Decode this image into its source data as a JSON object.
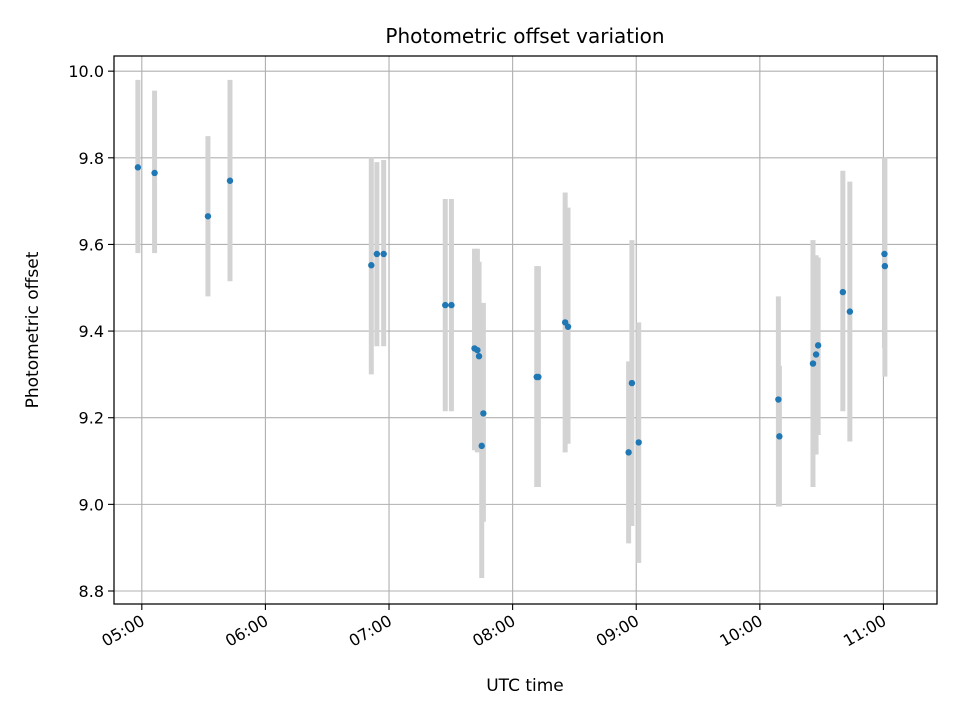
{
  "chart_data": {
    "type": "scatter",
    "title": "Photometric offset variation",
    "xlabel": "UTC time",
    "ylabel": "Photometric offset",
    "x_unit": "minutes_of_day_utc",
    "xlim": [
      286.5,
      686.0
    ],
    "ylim": [
      8.77,
      10.035
    ],
    "xticks": [
      {
        "value": 300,
        "label": "05:00"
      },
      {
        "value": 360,
        "label": "06:00"
      },
      {
        "value": 420,
        "label": "07:00"
      },
      {
        "value": 480,
        "label": "08:00"
      },
      {
        "value": 540,
        "label": "09:00"
      },
      {
        "value": 600,
        "label": "10:00"
      },
      {
        "value": 660,
        "label": "11:00"
      }
    ],
    "yticks": [
      {
        "value": 8.8,
        "label": "8.8"
      },
      {
        "value": 9.0,
        "label": "9.0"
      },
      {
        "value": 9.2,
        "label": "9.2"
      },
      {
        "value": 9.4,
        "label": "9.4"
      },
      {
        "value": 9.6,
        "label": "9.6"
      },
      {
        "value": 9.8,
        "label": "9.8"
      },
      {
        "value": 10.0,
        "label": "10.0"
      }
    ],
    "grid": true,
    "point_color": "#1f77b4",
    "errorbar_color": "#d3d3d3",
    "points": [
      {
        "x": 298.1,
        "y": 9.778,
        "low": 9.58,
        "high": 9.98
      },
      {
        "x": 306.2,
        "y": 9.765,
        "low": 9.58,
        "high": 9.955
      },
      {
        "x": 332.1,
        "y": 9.665,
        "low": 9.48,
        "high": 9.85
      },
      {
        "x": 342.8,
        "y": 9.747,
        "low": 9.515,
        "high": 9.98
      },
      {
        "x": 411.4,
        "y": 9.552,
        "low": 9.3,
        "high": 9.8
      },
      {
        "x": 414.1,
        "y": 9.578,
        "low": 9.365,
        "high": 9.79
      },
      {
        "x": 417.4,
        "y": 9.578,
        "low": 9.365,
        "high": 9.795
      },
      {
        "x": 447.3,
        "y": 9.46,
        "low": 9.215,
        "high": 9.705
      },
      {
        "x": 450.3,
        "y": 9.46,
        "low": 9.215,
        "high": 9.705
      },
      {
        "x": 461.5,
        "y": 9.36,
        "low": 9.125,
        "high": 9.59
      },
      {
        "x": 462.9,
        "y": 9.356,
        "low": 9.12,
        "high": 9.59
      },
      {
        "x": 463.7,
        "y": 9.342,
        "low": 9.125,
        "high": 9.56
      },
      {
        "x": 465.0,
        "y": 9.135,
        "low": 8.83,
        "high": 9.44
      },
      {
        "x": 465.8,
        "y": 9.21,
        "low": 8.96,
        "high": 9.465
      },
      {
        "x": 491.7,
        "y": 9.294,
        "low": 9.04,
        "high": 9.55
      },
      {
        "x": 492.5,
        "y": 9.294,
        "low": 9.04,
        "high": 9.55
      },
      {
        "x": 505.5,
        "y": 9.42,
        "low": 9.12,
        "high": 9.72
      },
      {
        "x": 506.9,
        "y": 9.41,
        "low": 9.14,
        "high": 9.685
      },
      {
        "x": 536.3,
        "y": 9.12,
        "low": 8.91,
        "high": 9.33
      },
      {
        "x": 537.9,
        "y": 9.28,
        "low": 8.95,
        "high": 9.61
      },
      {
        "x": 541.2,
        "y": 9.143,
        "low": 8.865,
        "high": 9.42
      },
      {
        "x": 609.0,
        "y": 9.242,
        "low": 8.995,
        "high": 9.48
      },
      {
        "x": 609.5,
        "y": 9.157,
        "low": 8.995,
        "high": 9.32
      },
      {
        "x": 625.8,
        "y": 9.325,
        "low": 9.04,
        "high": 9.61
      },
      {
        "x": 627.3,
        "y": 9.346,
        "low": 9.115,
        "high": 9.575
      },
      {
        "x": 628.3,
        "y": 9.367,
        "low": 9.16,
        "high": 9.57
      },
      {
        "x": 640.3,
        "y": 9.49,
        "low": 9.215,
        "high": 9.77
      },
      {
        "x": 643.7,
        "y": 9.445,
        "low": 9.145,
        "high": 9.745
      },
      {
        "x": 660.5,
        "y": 9.578,
        "low": 9.36,
        "high": 9.8
      },
      {
        "x": 660.7,
        "y": 9.55,
        "low": 9.295,
        "high": 9.8
      }
    ]
  }
}
